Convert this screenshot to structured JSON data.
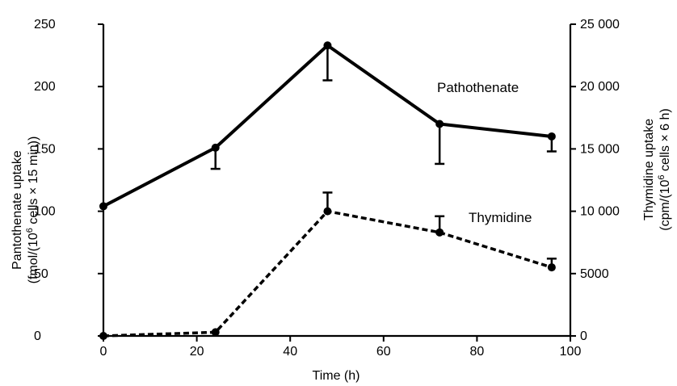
{
  "chart_data": {
    "type": "line",
    "x_axis": {
      "label": "Time (h)",
      "range": [
        0,
        100
      ],
      "ticks": [
        0,
        20,
        40,
        60,
        80,
        100
      ],
      "tick_labels": [
        "0",
        "20",
        "40",
        "60",
        "80",
        "100"
      ]
    },
    "y_axis_left": {
      "label_line1": "Pantothenate uptake",
      "label_line2_prefix": "(fmol/(10",
      "label_line2_sup": "6",
      "label_line2_suffix": " cells × 15 min))",
      "range": [
        0,
        250
      ],
      "ticks": [
        0,
        50,
        100,
        150,
        200,
        250
      ],
      "tick_labels": [
        "0",
        "50",
        "100",
        "150",
        "200",
        "250"
      ]
    },
    "y_axis_right": {
      "label_line1": "Thymidine uptake",
      "label_line2_prefix": "(cpm/(10",
      "label_line2_sup": "6",
      "label_line2_suffix": " cells × 6 h)",
      "range": [
        0,
        25000
      ],
      "ticks": [
        0,
        5000,
        10000,
        15000,
        20000,
        25000
      ],
      "tick_labels": [
        "0",
        "5000",
        "10 000",
        "15 000",
        "20 000",
        "25 000"
      ]
    },
    "series": [
      {
        "name": "Pathothenate",
        "axis": "left",
        "line_style": "solid",
        "x": [
          0,
          24,
          48,
          72,
          96
        ],
        "y": [
          104,
          151,
          233,
          170,
          160
        ],
        "error_low": [
          104,
          134,
          205,
          138,
          148
        ],
        "error_high": [
          104,
          151,
          233,
          170,
          160
        ]
      },
      {
        "name": "Thymidine",
        "axis": "right",
        "line_style": "dashed",
        "x": [
          0,
          24,
          48,
          72,
          96
        ],
        "y": [
          0,
          300,
          10000,
          8300,
          5500
        ],
        "error_low": [
          0,
          300,
          10000,
          8300,
          5500
        ],
        "error_high": [
          0,
          300,
          11500,
          9600,
          6200
        ]
      }
    ],
    "grid": false,
    "legend": "inline labels"
  }
}
